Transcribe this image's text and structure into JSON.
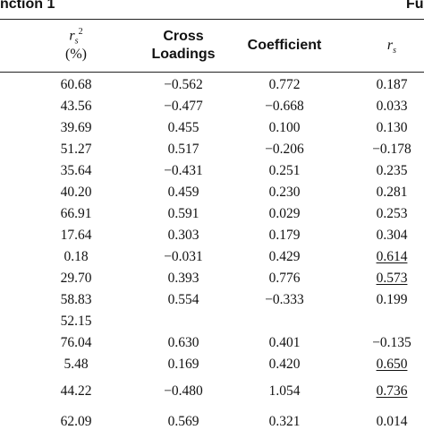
{
  "header": {
    "left_fragment": "nction 1",
    "right_fragment": "Fu",
    "col_rs2_sym": "r",
    "col_rs2_sub": "s",
    "col_rs2_sup": "2",
    "col_rs2_unit": "(%)",
    "col_cross_line1": "Cross",
    "col_cross_line2": "Loadings",
    "col_coef": "Coefficient",
    "col_rs_sym": "r",
    "col_rs_sub": "s"
  },
  "rows": [
    {
      "rs2": "60.68",
      "cross": "−0.562",
      "coef": "0.772",
      "rs": "0.187",
      "rs_underline": false
    },
    {
      "rs2": "43.56",
      "cross": "−0.477",
      "coef": "−0.668",
      "rs": "0.033",
      "rs_underline": false
    },
    {
      "rs2": "39.69",
      "cross": "0.455",
      "coef": "0.100",
      "rs": "0.130",
      "rs_underline": false
    },
    {
      "rs2": "51.27",
      "cross": "0.517",
      "coef": "−0.206",
      "rs": "−0.178",
      "rs_underline": false
    },
    {
      "rs2": "35.64",
      "cross": "−0.431",
      "coef": "0.251",
      "rs": "0.235",
      "rs_underline": false
    },
    {
      "rs2": "40.20",
      "cross": "0.459",
      "coef": "0.230",
      "rs": "0.281",
      "rs_underline": false
    },
    {
      "rs2": "66.91",
      "cross": "0.591",
      "coef": "0.029",
      "rs": "0.253",
      "rs_underline": false
    },
    {
      "rs2": "17.64",
      "cross": "0.303",
      "coef": "0.179",
      "rs": "0.304",
      "rs_underline": false
    },
    {
      "rs2": "0.18",
      "cross": "−0.031",
      "coef": "0.429",
      "rs": "0.614",
      "rs_underline": true
    },
    {
      "rs2": "29.70",
      "cross": "0.393",
      "coef": "0.776",
      "rs": "0.573",
      "rs_underline": true
    },
    {
      "rs2": "58.83",
      "cross": "0.554",
      "coef": "−0.333",
      "rs": "0.199",
      "rs_underline": false
    },
    {
      "rs2": "52.15",
      "cross": "",
      "coef": "",
      "rs": "",
      "rs_underline": false
    },
    {
      "rs2": "76.04",
      "cross": "0.630",
      "coef": "0.401",
      "rs": "−0.135",
      "rs_underline": false
    },
    {
      "rs2": "5.48",
      "cross": "0.169",
      "coef": "0.420",
      "rs": "0.650",
      "rs_underline": true
    },
    {
      "rs2": "44.22",
      "cross": "−0.480",
      "coef": "1.054",
      "rs": "0.736",
      "rs_underline": true
    },
    {
      "rs2": "62.09",
      "cross": "0.569",
      "coef": "0.321",
      "rs": "0.014",
      "rs_underline": false
    }
  ]
}
